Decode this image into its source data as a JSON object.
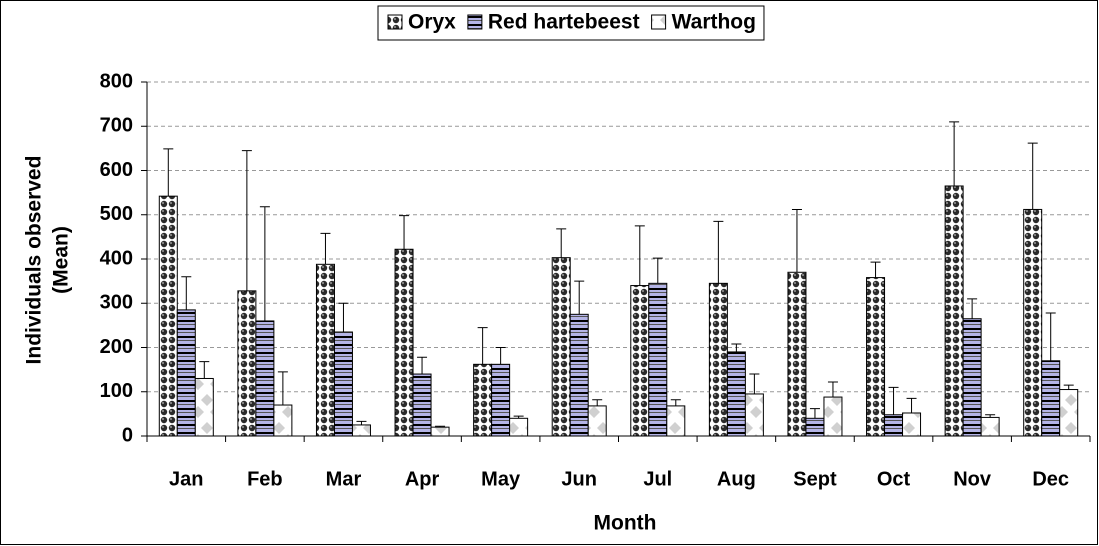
{
  "chart_data": {
    "type": "bar",
    "categories": [
      "Jan",
      "Feb",
      "Mar",
      "Apr",
      "May",
      "Jun",
      "Jul",
      "Aug",
      "Sept",
      "Oct",
      "Nov",
      "Dec"
    ],
    "series": [
      {
        "name": "Oryx",
        "color": "#2a2a2a",
        "values": [
          542,
          328,
          388,
          422,
          162,
          403,
          340,
          345,
          370,
          358,
          565,
          512
        ],
        "errors": [
          107,
          317,
          70,
          76,
          83,
          65,
          135,
          140,
          142,
          35,
          145,
          150
        ]
      },
      {
        "name": "Red hartebeest",
        "color": "#b4b4e6",
        "values": [
          285,
          260,
          235,
          140,
          162,
          275,
          345,
          190,
          40,
          48,
          265,
          170
        ],
        "errors": [
          75,
          258,
          65,
          38,
          38,
          75,
          57,
          18,
          22,
          62,
          45,
          108
        ]
      },
      {
        "name": "Warthog",
        "color": "#d0d0d0",
        "values": [
          130,
          70,
          25,
          20,
          40,
          68,
          68,
          95,
          88,
          52,
          42,
          105
        ],
        "errors": [
          38,
          75,
          8,
          2,
          5,
          14,
          14,
          45,
          34,
          33,
          6,
          10
        ]
      }
    ],
    "xlabel": "Month",
    "ylabel": [
      "Individuals observed",
      "(Mean)"
    ],
    "ylim": [
      0,
      800
    ],
    "yticks": [
      0,
      100,
      200,
      300,
      400,
      500,
      600,
      700,
      800
    ],
    "grid": true,
    "legend": "top"
  }
}
